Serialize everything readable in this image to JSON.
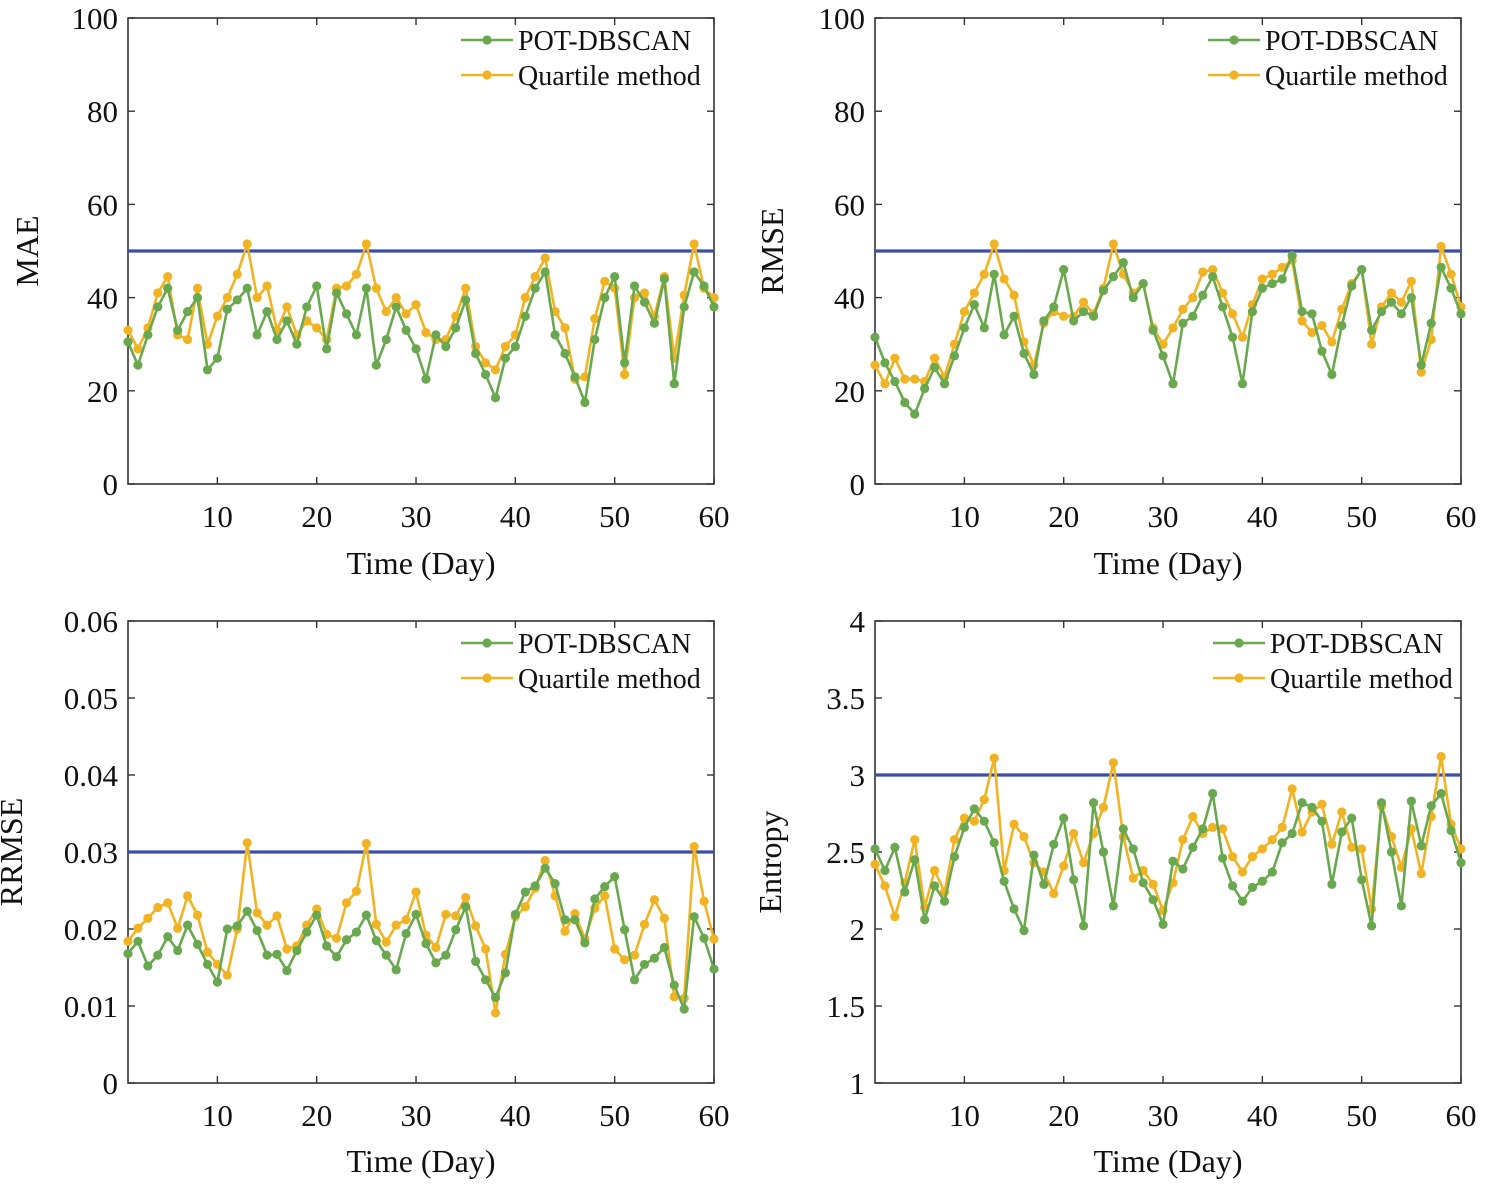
{
  "colors": {
    "pot_dbscan": "#6aa84f",
    "quartile": "#f0b323",
    "threshold": "#3b4fa8",
    "axis": "#333333"
  },
  "chart_data": [
    {
      "type": "line",
      "ylabel": "MAE",
      "xlabel": "Time (Day)",
      "xlim": [
        1,
        60
      ],
      "ylim": [
        0,
        100
      ],
      "xticks": [
        10,
        20,
        30,
        40,
        50,
        60
      ],
      "yticks": [
        0,
        20,
        40,
        60,
        80,
        100
      ],
      "ytick_labels": [
        "0",
        "20",
        "40",
        "60",
        "80",
        "100"
      ],
      "threshold": 50,
      "legend": "top-right",
      "series": [
        {
          "name": "POT-DBSCAN",
          "values": [
            30.5,
            25.5,
            32,
            38,
            42,
            33,
            37,
            40,
            24.5,
            27,
            37.5,
            39.5,
            42,
            32,
            37,
            31,
            35,
            30,
            38,
            42.5,
            29,
            41,
            36.5,
            32,
            42,
            25.5,
            31,
            38,
            33,
            29,
            22.5,
            32,
            29.5,
            33.5,
            39.5,
            28,
            23.5,
            18.5,
            27,
            29.5,
            36,
            42,
            45.5,
            32,
            28,
            23,
            17.5,
            31,
            40,
            44.5,
            26,
            42.5,
            39,
            34.5,
            44,
            21.5,
            38,
            45.5,
            42.5,
            38
          ]
        },
        {
          "name": "Quartile method",
          "values": [
            33,
            29,
            33.5,
            41,
            44.5,
            32,
            31,
            42,
            30,
            36,
            40,
            45,
            51.5,
            40,
            42.5,
            33,
            38,
            32,
            35,
            33.5,
            31,
            42,
            42.5,
            45,
            51.5,
            42,
            37,
            40,
            36.5,
            38.5,
            32.5,
            31,
            31,
            36,
            42,
            29.5,
            26,
            24.5,
            29.5,
            32,
            40,
            44.5,
            48.5,
            37,
            33.5,
            22.5,
            23,
            35.5,
            43.5,
            42,
            23.5,
            40,
            41,
            36,
            44.5,
            27,
            40.5,
            51.5,
            42,
            40
          ]
        }
      ]
    },
    {
      "type": "line",
      "ylabel": "RMSE",
      "xlabel": "Time (Day)",
      "xlim": [
        1,
        60
      ],
      "ylim": [
        0,
        100
      ],
      "xticks": [
        10,
        20,
        30,
        40,
        50,
        60
      ],
      "yticks": [
        0,
        20,
        40,
        60,
        80,
        100
      ],
      "ytick_labels": [
        "0",
        "20",
        "40",
        "60",
        "80",
        "100"
      ],
      "threshold": 50,
      "legend": "top-right",
      "series": [
        {
          "name": "POT-DBSCAN",
          "values": [
            31.5,
            26,
            22,
            17.5,
            15,
            20.5,
            25,
            21.5,
            27.5,
            33.5,
            38.5,
            33.5,
            45,
            32,
            36,
            28,
            23.5,
            35,
            38,
            46,
            35,
            37,
            36,
            41.5,
            44.5,
            47.5,
            40,
            43,
            33,
            27.5,
            21.5,
            34.5,
            36,
            40.5,
            44.5,
            38,
            31.5,
            21.5,
            37,
            42,
            43,
            44,
            49,
            37,
            36.5,
            28.5,
            23.5,
            34,
            42.5,
            46,
            33,
            37,
            39,
            36.5,
            40,
            25.5,
            34.5,
            46.5,
            42,
            36.5
          ]
        },
        {
          "name": "Quartile method",
          "values": [
            25.5,
            21.5,
            27,
            22.5,
            22.5,
            22,
            27,
            23,
            30,
            37,
            41,
            45,
            51.5,
            44,
            40.5,
            30.5,
            25.5,
            34.5,
            37,
            36,
            36,
            39,
            36.5,
            42,
            51.5,
            45,
            41,
            43,
            33.5,
            30,
            33.5,
            37.5,
            40,
            45.5,
            46,
            41,
            36.5,
            31.5,
            38.5,
            44,
            45,
            46.5,
            48,
            35,
            32.5,
            34,
            30.5,
            37.5,
            43,
            46,
            30,
            38,
            41,
            39,
            43.5,
            24,
            31,
            51,
            45,
            38
          ]
        }
      ]
    },
    {
      "type": "line",
      "ylabel": "RRMSE",
      "xlabel": "Time (Day)",
      "xlim": [
        1,
        60
      ],
      "ylim": [
        0,
        0.06
      ],
      "xticks": [
        10,
        20,
        30,
        40,
        50,
        60
      ],
      "yticks": [
        0,
        0.01,
        0.02,
        0.03,
        0.04,
        0.05,
        0.06
      ],
      "ytick_labels": [
        "0",
        "0.01",
        "0.02",
        "0.03",
        "0.04",
        "0.05",
        "0.06"
      ],
      "threshold": 0.03,
      "legend": "top-right",
      "series": [
        {
          "name": "POT-DBSCAN",
          "values": [
            0.0168,
            0.0184,
            0.0152,
            0.0166,
            0.019,
            0.0172,
            0.0205,
            0.018,
            0.0154,
            0.0131,
            0.02,
            0.0204,
            0.0223,
            0.0198,
            0.0166,
            0.0167,
            0.0146,
            0.0172,
            0.0196,
            0.0218,
            0.0178,
            0.0164,
            0.0186,
            0.0196,
            0.0218,
            0.0185,
            0.0166,
            0.0147,
            0.0194,
            0.0219,
            0.0181,
            0.0156,
            0.0166,
            0.0199,
            0.0229,
            0.0158,
            0.0134,
            0.0111,
            0.0143,
            0.0219,
            0.0248,
            0.0256,
            0.0279,
            0.0259,
            0.0212,
            0.0212,
            0.0182,
            0.0239,
            0.0255,
            0.0268,
            0.0199,
            0.0134,
            0.0154,
            0.0162,
            0.0176,
            0.0127,
            0.0096,
            0.0216,
            0.0188,
            0.0148
          ]
        },
        {
          "name": "Quartile method",
          "values": [
            0.0184,
            0.0201,
            0.0214,
            0.0228,
            0.0234,
            0.0201,
            0.0243,
            0.0218,
            0.017,
            0.0154,
            0.014,
            0.02,
            0.0312,
            0.0221,
            0.0205,
            0.0217,
            0.0174,
            0.0178,
            0.0205,
            0.0226,
            0.0193,
            0.0188,
            0.0234,
            0.0249,
            0.0311,
            0.0206,
            0.0183,
            0.0205,
            0.0212,
            0.0248,
            0.0192,
            0.0176,
            0.0219,
            0.0217,
            0.0241,
            0.0204,
            0.0174,
            0.0091,
            0.0167,
            0.0216,
            0.0229,
            0.0253,
            0.0289,
            0.0243,
            0.0197,
            0.022,
            0.0187,
            0.0227,
            0.0243,
            0.0174,
            0.016,
            0.0166,
            0.0206,
            0.0238,
            0.0214,
            0.0112,
            0.011,
            0.0307,
            0.0236,
            0.0187
          ]
        }
      ]
    },
    {
      "type": "line",
      "ylabel": "Entropy",
      "xlabel": "Time (Day)",
      "xlim": [
        1,
        60
      ],
      "ylim": [
        1,
        4
      ],
      "xticks": [
        10,
        20,
        30,
        40,
        50,
        60
      ],
      "yticks": [
        1,
        1.5,
        2,
        2.5,
        3,
        3.5,
        4
      ],
      "ytick_labels": [
        "1",
        "1.5",
        "2",
        "2.5",
        "3",
        "3.5",
        "4"
      ],
      "threshold": 3,
      "legend": "top-right",
      "series": [
        {
          "name": "POT-DBSCAN",
          "values": [
            2.52,
            2.38,
            2.53,
            2.24,
            2.45,
            2.06,
            2.28,
            2.18,
            2.47,
            2.66,
            2.78,
            2.7,
            2.56,
            2.31,
            2.13,
            1.99,
            2.48,
            2.29,
            2.55,
            2.72,
            2.32,
            2.02,
            2.82,
            2.5,
            2.15,
            2.65,
            2.52,
            2.3,
            2.19,
            2.03,
            2.44,
            2.39,
            2.53,
            2.65,
            2.88,
            2.46,
            2.28,
            2.18,
            2.27,
            2.31,
            2.37,
            2.56,
            2.62,
            2.82,
            2.79,
            2.7,
            2.29,
            2.63,
            2.72,
            2.32,
            2.02,
            2.82,
            2.5,
            2.15,
            2.83,
            2.54,
            2.8,
            2.88,
            2.64,
            2.43
          ]
        },
        {
          "name": "Quartile method",
          "values": [
            2.42,
            2.28,
            2.08,
            2.3,
            2.58,
            2.14,
            2.38,
            2.24,
            2.58,
            2.72,
            2.7,
            2.84,
            3.11,
            2.38,
            2.68,
            2.6,
            2.43,
            2.37,
            2.23,
            2.41,
            2.62,
            2.43,
            2.62,
            2.79,
            3.08,
            2.6,
            2.33,
            2.38,
            2.29,
            2.12,
            2.3,
            2.58,
            2.73,
            2.62,
            2.66,
            2.65,
            2.47,
            2.37,
            2.47,
            2.52,
            2.58,
            2.66,
            2.91,
            2.63,
            2.76,
            2.81,
            2.55,
            2.76,
            2.53,
            2.52,
            2.13,
            2.8,
            2.6,
            2.4,
            2.65,
            2.36,
            2.73,
            3.12,
            2.68,
            2.52
          ]
        }
      ]
    }
  ]
}
